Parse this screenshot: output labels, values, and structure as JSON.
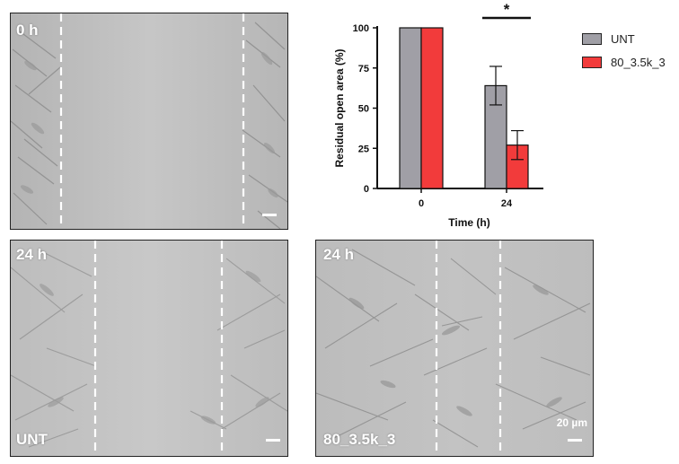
{
  "panels": {
    "top_left": {
      "label": "0 h"
    },
    "bottom_left": {
      "label": "24 h",
      "condition": "UNT"
    },
    "bottom_right": {
      "label": "24 h",
      "condition": "80_3.5k_3",
      "scale_text": "20 µm"
    }
  },
  "colors": {
    "untreated": "#a09fa6",
    "treated": "#f23b3b",
    "micrograph_bg": "#c3c3c3",
    "wound_edge_line": "#ffffff"
  },
  "chart_data": {
    "type": "bar",
    "title": "",
    "xlabel": "Time (h)",
    "ylabel": "Residual open area (%)",
    "categories": [
      "0",
      "24"
    ],
    "ylim": [
      0,
      100
    ],
    "yticks": [
      "0",
      "25",
      "50",
      "75",
      "100"
    ],
    "series": [
      {
        "name": "UNT",
        "values": [
          100,
          64
        ],
        "errors": [
          0,
          12
        ],
        "color": "#a09fa6"
      },
      {
        "name": "80_3.5k_3",
        "values": [
          100,
          27
        ],
        "errors": [
          0,
          9
        ],
        "color": "#f23b3b"
      }
    ],
    "significance": {
      "category": "24",
      "symbol": "*"
    },
    "legend_position": "right"
  }
}
